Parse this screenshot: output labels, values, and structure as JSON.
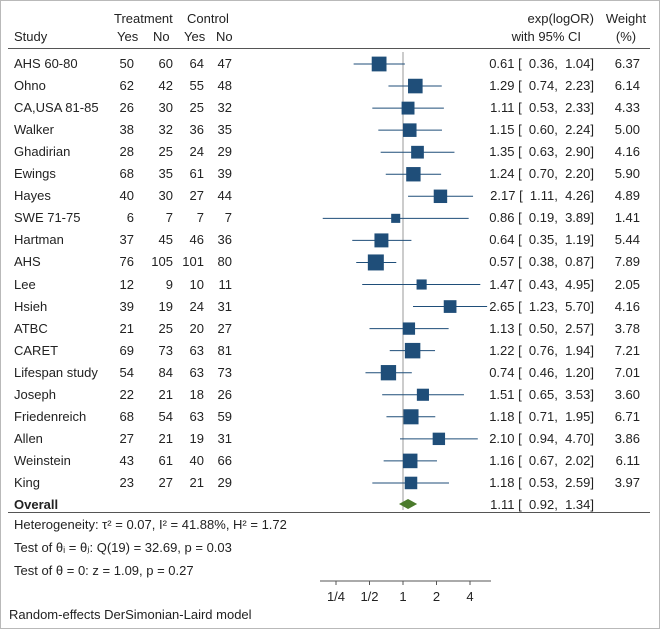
{
  "header": {
    "group_treatment": "Treatment",
    "group_control": "Control",
    "study": "Study",
    "yes": "Yes",
    "no": "No",
    "yes2": "Yes",
    "no2": "No",
    "effect_line1": "exp(logOR)",
    "effect_line2": "with 95% CI",
    "weight_line1": "Weight",
    "weight_line2": "(%)"
  },
  "chart_data": {
    "type": "forest",
    "scale": "log",
    "xticks": [
      "1/4",
      "1/2",
      "1",
      "2",
      "4"
    ],
    "xtick_values": [
      0.25,
      0.5,
      1,
      2,
      4
    ],
    "xlim": [
      0.12,
      6.0
    ],
    "null_line": 1,
    "studies": [
      {
        "name": "AHS 60-80",
        "t_yes": "50",
        "t_no": "60",
        "c_yes": "64",
        "c_no": "47",
        "or": 0.61,
        "lo": 0.36,
        "hi": 1.04,
        "ci_text": "0.61 [  0.36,  1.04]",
        "weight": 6.37,
        "weight_text": "6.37"
      },
      {
        "name": "Ohno",
        "t_yes": "62",
        "t_no": "42",
        "c_yes": "55",
        "c_no": "48",
        "or": 1.29,
        "lo": 0.74,
        "hi": 2.23,
        "ci_text": "1.29 [  0.74,  2.23]",
        "weight": 6.14,
        "weight_text": "6.14"
      },
      {
        "name": "CA,USA 81-85",
        "t_yes": "26",
        "t_no": "30",
        "c_yes": "25",
        "c_no": "32",
        "or": 1.11,
        "lo": 0.53,
        "hi": 2.33,
        "ci_text": "1.11 [  0.53,  2.33]",
        "weight": 4.33,
        "weight_text": "4.33"
      },
      {
        "name": "Walker",
        "t_yes": "38",
        "t_no": "32",
        "c_yes": "36",
        "c_no": "35",
        "or": 1.15,
        "lo": 0.6,
        "hi": 2.24,
        "ci_text": "1.15 [  0.60,  2.24]",
        "weight": 5.0,
        "weight_text": "5.00"
      },
      {
        "name": "Ghadirian",
        "t_yes": "28",
        "t_no": "25",
        "c_yes": "24",
        "c_no": "29",
        "or": 1.35,
        "lo": 0.63,
        "hi": 2.9,
        "ci_text": "1.35 [  0.63,  2.90]",
        "weight": 4.16,
        "weight_text": "4.16"
      },
      {
        "name": "Ewings",
        "t_yes": "68",
        "t_no": "35",
        "c_yes": "61",
        "c_no": "39",
        "or": 1.24,
        "lo": 0.7,
        "hi": 2.2,
        "ci_text": "1.24 [  0.70,  2.20]",
        "weight": 5.9,
        "weight_text": "5.90"
      },
      {
        "name": "Hayes",
        "t_yes": "40",
        "t_no": "30",
        "c_yes": "27",
        "c_no": "44",
        "or": 2.17,
        "lo": 1.11,
        "hi": 4.26,
        "ci_text": "2.17 [  1.11,  4.26]",
        "weight": 4.89,
        "weight_text": "4.89"
      },
      {
        "name": "SWE 71-75",
        "t_yes": "6",
        "t_no": "7",
        "c_yes": "7",
        "c_no": "7",
        "or": 0.86,
        "lo": 0.19,
        "hi": 3.89,
        "ci_text": "0.86 [  0.19,  3.89]",
        "weight": 1.41,
        "weight_text": "1.41"
      },
      {
        "name": "Hartman",
        "t_yes": "37",
        "t_no": "45",
        "c_yes": "46",
        "c_no": "36",
        "or": 0.64,
        "lo": 0.35,
        "hi": 1.19,
        "ci_text": "0.64 [  0.35,  1.19]",
        "weight": 5.44,
        "weight_text": "5.44"
      },
      {
        "name": "AHS",
        "t_yes": "76",
        "t_no": "105",
        "c_yes": "101",
        "c_no": "80",
        "or": 0.57,
        "lo": 0.38,
        "hi": 0.87,
        "ci_text": "0.57 [  0.38,  0.87]",
        "weight": 7.89,
        "weight_text": "7.89"
      },
      {
        "name": "Lee",
        "t_yes": "12",
        "t_no": "9",
        "c_yes": "10",
        "c_no": "11",
        "or": 1.47,
        "lo": 0.43,
        "hi": 4.95,
        "ci_text": "1.47 [  0.43,  4.95]",
        "weight": 2.05,
        "weight_text": "2.05"
      },
      {
        "name": "Hsieh",
        "t_yes": "39",
        "t_no": "19",
        "c_yes": "24",
        "c_no": "31",
        "or": 2.65,
        "lo": 1.23,
        "hi": 5.7,
        "ci_text": "2.65 [  1.23,  5.70]",
        "weight": 4.16,
        "weight_text": "4.16"
      },
      {
        "name": "ATBC",
        "t_yes": "21",
        "t_no": "25",
        "c_yes": "20",
        "c_no": "27",
        "or": 1.13,
        "lo": 0.5,
        "hi": 2.57,
        "ci_text": "1.13 [  0.50,  2.57]",
        "weight": 3.78,
        "weight_text": "3.78"
      },
      {
        "name": "CARET",
        "t_yes": "69",
        "t_no": "73",
        "c_yes": "63",
        "c_no": "81",
        "or": 1.22,
        "lo": 0.76,
        "hi": 1.94,
        "ci_text": "1.22 [  0.76,  1.94]",
        "weight": 7.21,
        "weight_text": "7.21"
      },
      {
        "name": "Lifespan study",
        "t_yes": "54",
        "t_no": "84",
        "c_yes": "63",
        "c_no": "73",
        "or": 0.74,
        "lo": 0.46,
        "hi": 1.2,
        "ci_text": "0.74 [  0.46,  1.20]",
        "weight": 7.01,
        "weight_text": "7.01"
      },
      {
        "name": "Joseph",
        "t_yes": "22",
        "t_no": "21",
        "c_yes": "18",
        "c_no": "26",
        "or": 1.51,
        "lo": 0.65,
        "hi": 3.53,
        "ci_text": "1.51 [  0.65,  3.53]",
        "weight": 3.6,
        "weight_text": "3.60"
      },
      {
        "name": "Friedenreich",
        "t_yes": "68",
        "t_no": "54",
        "c_yes": "63",
        "c_no": "59",
        "or": 1.18,
        "lo": 0.71,
        "hi": 1.95,
        "ci_text": "1.18 [  0.71,  1.95]",
        "weight": 6.71,
        "weight_text": "6.71"
      },
      {
        "name": "Allen",
        "t_yes": "27",
        "t_no": "21",
        "c_yes": "19",
        "c_no": "31",
        "or": 2.1,
        "lo": 0.94,
        "hi": 4.7,
        "ci_text": "2.10 [  0.94,  4.70]",
        "weight": 3.86,
        "weight_text": "3.86"
      },
      {
        "name": "Weinstein",
        "t_yes": "43",
        "t_no": "61",
        "c_yes": "40",
        "c_no": "66",
        "or": 1.16,
        "lo": 0.67,
        "hi": 2.02,
        "ci_text": "1.16 [  0.67,  2.02]",
        "weight": 6.11,
        "weight_text": "6.11"
      },
      {
        "name": "King",
        "t_yes": "23",
        "t_no": "27",
        "c_yes": "21",
        "c_no": "29",
        "or": 1.18,
        "lo": 0.53,
        "hi": 2.59,
        "ci_text": "1.18 [  0.53,  2.59]",
        "weight": 3.97,
        "weight_text": "3.97"
      }
    ],
    "overall": {
      "name": "Overall",
      "or": 1.11,
      "lo": 0.92,
      "hi": 1.34,
      "ci_text": "1.11 [  0.92,  1.34]"
    },
    "colors": {
      "marker": "#1f4e79",
      "diamond": "#4a7a2c",
      "line": "#1f4e79",
      "axis": "#555555"
    }
  },
  "stats": {
    "heterogeneity": "Heterogeneity: τ² = 0.07, I² = 41.88%, H² = 1.72",
    "homogeneity": "Test of θᵢ = θⱼ: Q(19) = 32.69, p = 0.03",
    "overall_test": "Test of θ = 0: z = 1.09, p = 0.27"
  },
  "footer": {
    "model": "Random-effects DerSimonian-Laird model"
  }
}
